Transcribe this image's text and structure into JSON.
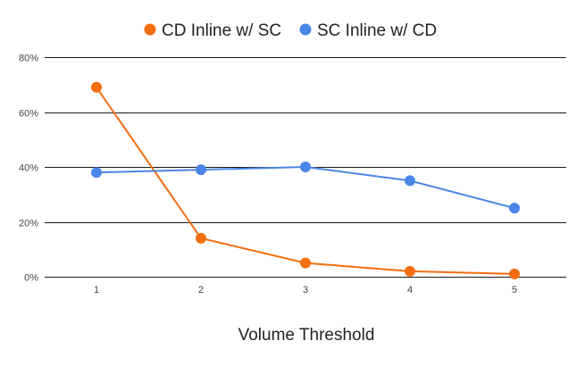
{
  "chart_data": {
    "type": "line",
    "x": [
      1,
      2,
      3,
      4,
      5
    ],
    "x_tick_labels": [
      "1",
      "2",
      "3",
      "4",
      "5"
    ],
    "series": [
      {
        "name": "CD Inline w/ SC",
        "color": "#f46d0f",
        "values": [
          69,
          14,
          5,
          2,
          1
        ]
      },
      {
        "name": "SC Inline w/ CD",
        "color": "#4a86e8",
        "values": [
          38,
          39,
          40,
          35,
          25
        ]
      }
    ],
    "y_ticks": [
      0,
      20,
      40,
      60,
      80
    ],
    "y_tick_labels": [
      "0%",
      "20%",
      "40%",
      "60%",
      "80%"
    ],
    "ylim": [
      0,
      80
    ],
    "xlabel": "Volume Threshold",
    "ylabel": "",
    "grid": "horizontal",
    "legend": "top-center"
  }
}
